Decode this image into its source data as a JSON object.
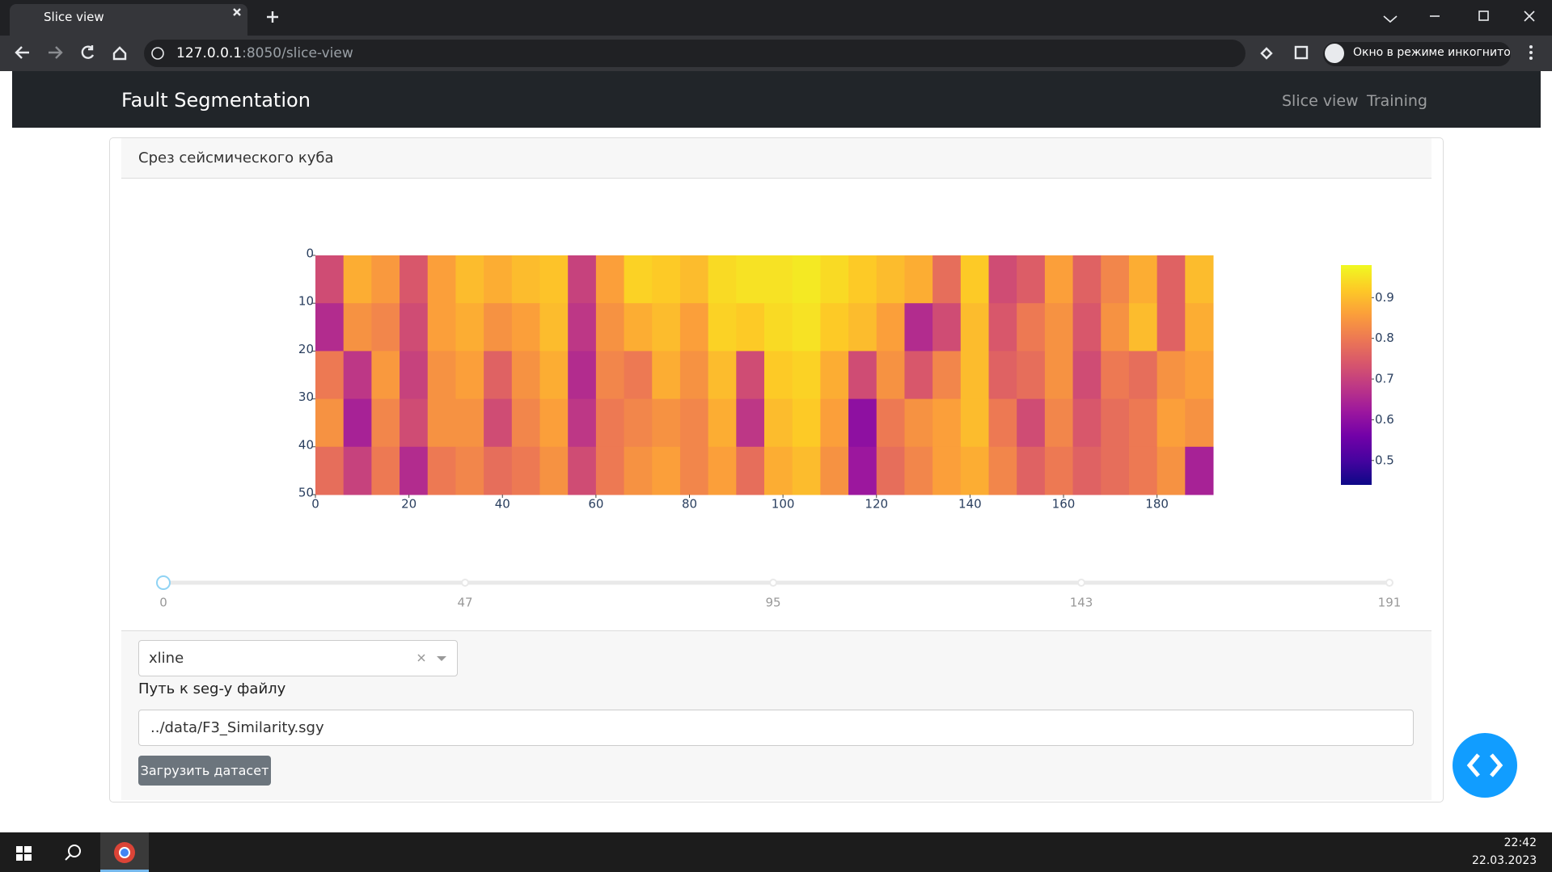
{
  "browser": {
    "tab_title": "Slice view",
    "url_host": "127.0.0.1",
    "url_rest": ":8050/slice-view",
    "profile": "Окно в режиме инкогнито"
  },
  "navbar": {
    "brand": "Fault Segmentation",
    "links": [
      "Slice view",
      "Training"
    ]
  },
  "card": {
    "header": "Срез сейсмического куба"
  },
  "chart_data": {
    "type": "heatmap",
    "x_bins": [
      0,
      6,
      12,
      18,
      24,
      30,
      36,
      42,
      48,
      54,
      60,
      66,
      72,
      78,
      84,
      90,
      96,
      102,
      108,
      114,
      120,
      126,
      132,
      138,
      144,
      150,
      156,
      162,
      168,
      174,
      180,
      186,
      192
    ],
    "y_bins": [
      0,
      10,
      20,
      30,
      40,
      50
    ],
    "z": [
      [
        0.72,
        0.88,
        0.85,
        0.74,
        0.86,
        0.9,
        0.88,
        0.9,
        0.91,
        0.7,
        0.86,
        0.93,
        0.92,
        0.9,
        0.94,
        0.95,
        0.95,
        0.96,
        0.94,
        0.92,
        0.9,
        0.88,
        0.78,
        0.92,
        0.72,
        0.75,
        0.86,
        0.76,
        0.82,
        0.88,
        0.76,
        0.9
      ],
      [
        0.66,
        0.84,
        0.82,
        0.72,
        0.86,
        0.88,
        0.84,
        0.86,
        0.9,
        0.68,
        0.84,
        0.88,
        0.9,
        0.86,
        0.93,
        0.92,
        0.94,
        0.95,
        0.92,
        0.9,
        0.86,
        0.66,
        0.72,
        0.9,
        0.74,
        0.8,
        0.84,
        0.74,
        0.84,
        0.9,
        0.76,
        0.88
      ],
      [
        0.8,
        0.68,
        0.85,
        0.7,
        0.84,
        0.86,
        0.76,
        0.84,
        0.88,
        0.66,
        0.82,
        0.8,
        0.88,
        0.84,
        0.9,
        0.72,
        0.92,
        0.93,
        0.88,
        0.72,
        0.84,
        0.74,
        0.82,
        0.9,
        0.76,
        0.78,
        0.84,
        0.72,
        0.8,
        0.78,
        0.84,
        0.86
      ],
      [
        0.84,
        0.64,
        0.82,
        0.72,
        0.84,
        0.84,
        0.72,
        0.82,
        0.86,
        0.68,
        0.8,
        0.82,
        0.84,
        0.82,
        0.88,
        0.68,
        0.9,
        0.92,
        0.86,
        0.6,
        0.8,
        0.84,
        0.86,
        0.9,
        0.8,
        0.72,
        0.82,
        0.74,
        0.78,
        0.8,
        0.86,
        0.84
      ],
      [
        0.78,
        0.7,
        0.8,
        0.66,
        0.8,
        0.82,
        0.78,
        0.8,
        0.84,
        0.72,
        0.8,
        0.84,
        0.86,
        0.82,
        0.86,
        0.78,
        0.88,
        0.9,
        0.84,
        0.62,
        0.78,
        0.82,
        0.86,
        0.88,
        0.82,
        0.76,
        0.8,
        0.76,
        0.78,
        0.8,
        0.84,
        0.64
      ]
    ],
    "xlim": [
      0,
      192
    ],
    "ylim": [
      50,
      0
    ],
    "xticks": [
      0,
      20,
      40,
      60,
      80,
      100,
      120,
      140,
      160,
      180
    ],
    "yticks": [
      0,
      10,
      20,
      30,
      40,
      50
    ],
    "zlim": [
      0.44,
      0.98
    ],
    "colorbar_ticks": [
      0.5,
      0.6,
      0.7,
      0.8,
      0.9
    ],
    "colorscale": [
      "#0d0887",
      "#46039f",
      "#7201a8",
      "#9c179e",
      "#bd3786",
      "#d8576b",
      "#ed7953",
      "#fb9f3a",
      "#fdca26",
      "#f0f921"
    ]
  },
  "slider": {
    "min": 0,
    "max": 191,
    "value": 0,
    "marks": [
      0,
      47,
      95,
      143,
      191
    ]
  },
  "controls": {
    "dropdown": "xline",
    "path_label": "Путь к seg-y файлу",
    "path_value": "../data/F3_Similarity.sgy",
    "button": "Загрузить датасет"
  },
  "taskbar": {
    "time": "22:42",
    "date": "22.03.2023"
  }
}
